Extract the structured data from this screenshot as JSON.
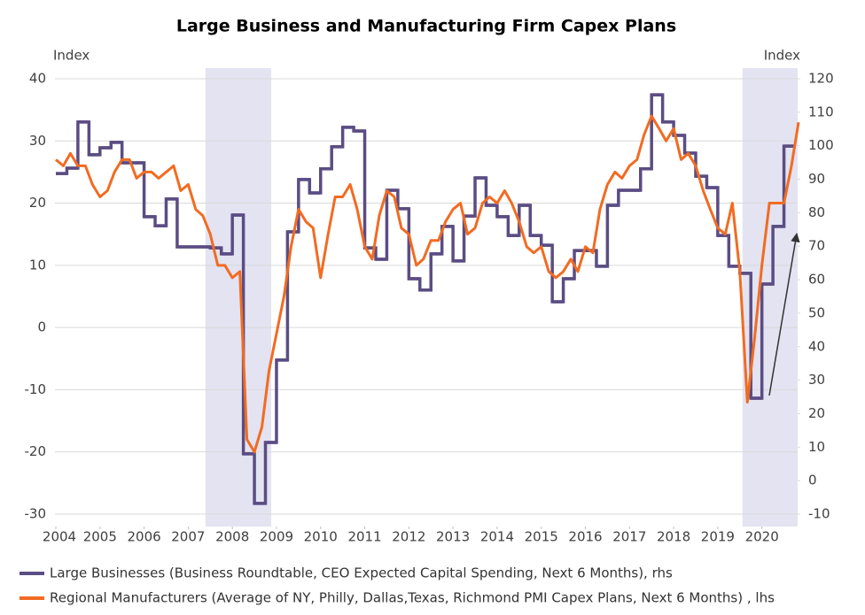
{
  "chart_data": {
    "type": "line",
    "title": "Large Business and Manufacturing Firm Capex Plans",
    "y_label": "Index",
    "y2_label": "Index",
    "xlim": [
      2003.98,
      2020.81
    ],
    "xticks": [
      2004,
      2005,
      2006,
      2007,
      2008,
      2009,
      2010,
      2011,
      2012,
      2013,
      2014,
      2015,
      2016,
      2017,
      2018,
      2019,
      2020
    ],
    "ylim": [
      -32,
      40
    ],
    "yticks": [
      -30,
      -20,
      -10,
      0,
      10,
      20,
      30,
      40
    ],
    "y2lim": [
      -13.7,
      120
    ],
    "y2ticks": [
      -10,
      0,
      10,
      20,
      30,
      40,
      50,
      60,
      70,
      80,
      90,
      100,
      110,
      120
    ],
    "grid": true,
    "shaded_regions": [
      [
        2007.39,
        2008.88
      ],
      [
        2019.56,
        2020.81
      ]
    ],
    "shade_color": "#e3e3f2",
    "series": [
      {
        "name": "Large Businesses (Business Roundtable, CEO Expected Capital Spending, Next 6 Months), rhs",
        "color": "#5b4d83",
        "axis": "y2",
        "step": true,
        "x": [
          2004,
          2004.25,
          2004.5,
          2004.75,
          2005,
          2005.25,
          2005.5,
          2005.75,
          2006,
          2006.25,
          2006.5,
          2006.75,
          2007,
          2007.25,
          2007.5,
          2007.75,
          2008,
          2008.25,
          2008.5,
          2008.75,
          2009,
          2009.25,
          2009.5,
          2009.75,
          2010,
          2010.25,
          2010.5,
          2010.75,
          2011,
          2011.25,
          2011.5,
          2011.75,
          2012,
          2012.25,
          2012.5,
          2012.75,
          2013,
          2013.25,
          2013.5,
          2013.75,
          2014,
          2014.25,
          2014.5,
          2014.75,
          2015,
          2015.25,
          2015.5,
          2015.75,
          2016,
          2016.25,
          2016.5,
          2016.75,
          2017,
          2017.25,
          2017.5,
          2017.75,
          2018,
          2018.25,
          2018.5,
          2018.75,
          2019,
          2019.25,
          2019.5,
          2019.75,
          2020,
          2020.25,
          2020.5
        ],
        "values": [
          91.7,
          93.3,
          107.1,
          97.3,
          99.4,
          101.0,
          94.9,
          94.9,
          78.8,
          76.1,
          84.1,
          69.8,
          69.8,
          69.8,
          69.5,
          67.7,
          79.3,
          8.0,
          -6.8,
          11.4,
          36.0,
          74.3,
          89.9,
          85.9,
          93.1,
          99.7,
          105.5,
          104.4,
          69.5,
          66.1,
          86.7,
          81.2,
          60.3,
          56.9,
          67.7,
          75.9,
          65.6,
          79,
          90.4,
          82.2,
          78.8,
          73.2,
          82.2,
          73.2,
          70.3,
          53.4,
          60.3,
          68.7,
          68.7,
          64.0,
          82.2,
          86.7,
          86.7,
          93.1,
          115.2,
          107.1,
          103.1,
          97.8,
          90.9,
          87.5,
          73.2,
          64.0,
          61.9,
          24.6,
          58.7,
          75.9,
          99.9
        ]
      },
      {
        "name": "Regional Manufacturers (Average of NY, Philly, Dallas,Texas, Richmond PMI Capex Plans, Next 6 Months) , lhs",
        "color": "#f26b21",
        "axis": "y",
        "x": [
          2004,
          2004.17,
          2004.33,
          2004.5,
          2004.67,
          2004.83,
          2005,
          2005.17,
          2005.33,
          2005.5,
          2005.67,
          2005.83,
          2006,
          2006.17,
          2006.33,
          2006.5,
          2006.67,
          2006.83,
          2007,
          2007.17,
          2007.33,
          2007.5,
          2007.67,
          2007.83,
          2008,
          2008.17,
          2008.33,
          2008.5,
          2008.67,
          2008.83,
          2009,
          2009.17,
          2009.33,
          2009.5,
          2009.67,
          2009.83,
          2010,
          2010.17,
          2010.33,
          2010.5,
          2010.67,
          2010.83,
          2011,
          2011.17,
          2011.33,
          2011.5,
          2011.67,
          2011.83,
          2012,
          2012.17,
          2012.33,
          2012.5,
          2012.67,
          2012.83,
          2013,
          2013.17,
          2013.33,
          2013.5,
          2013.67,
          2013.83,
          2014,
          2014.17,
          2014.33,
          2014.5,
          2014.67,
          2014.83,
          2015,
          2015.17,
          2015.33,
          2015.5,
          2015.67,
          2015.83,
          2016,
          2016.17,
          2016.33,
          2016.5,
          2016.67,
          2016.83,
          2017,
          2017.17,
          2017.33,
          2017.5,
          2017.67,
          2017.83,
          2018,
          2018.17,
          2018.33,
          2018.5,
          2018.67,
          2018.83,
          2019,
          2019.17,
          2019.33,
          2019.5,
          2019.67,
          2019.83,
          2020,
          2020.17,
          2020.33,
          2020.5,
          2020.67,
          2020.83
        ],
        "values": [
          27,
          26,
          28,
          26,
          26,
          23,
          21,
          22,
          25,
          27,
          27,
          24,
          25,
          25,
          24,
          25,
          26,
          22,
          23,
          19,
          18,
          15,
          10,
          10,
          8,
          9,
          -18,
          -20,
          -16,
          -7,
          -1,
          5,
          13,
          19,
          17,
          16,
          8,
          15,
          21,
          21,
          23,
          19,
          13,
          11,
          18,
          22,
          21,
          16,
          15,
          10,
          11,
          14,
          14,
          17,
          19,
          20,
          15,
          16,
          20,
          21,
          20,
          22,
          20,
          17,
          13,
          12,
          13,
          9,
          8,
          9,
          11,
          9,
          13,
          12,
          19,
          23,
          25,
          24,
          26,
          27,
          31,
          34,
          32,
          30,
          32,
          27,
          28,
          26,
          22,
          19,
          16,
          15,
          20,
          9,
          -12,
          -2,
          10,
          20,
          20,
          20,
          26,
          33
        ]
      }
    ]
  }
}
